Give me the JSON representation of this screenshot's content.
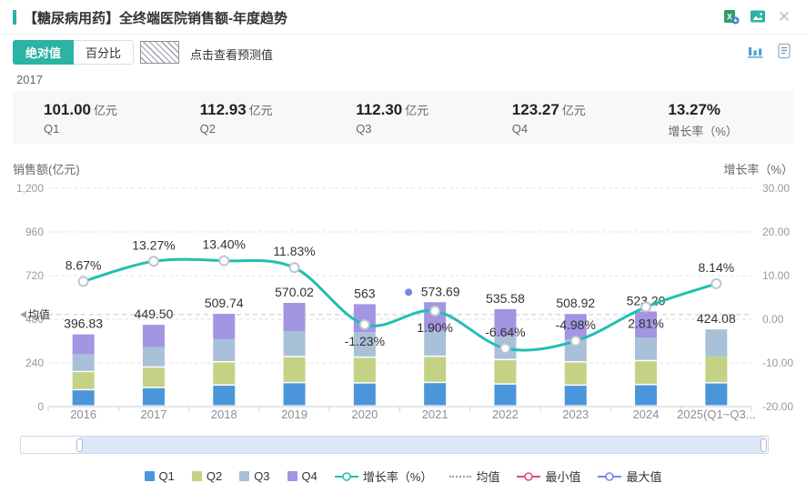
{
  "header": {
    "title": "【糖尿病用药】全终端医院销售额-年度趋势",
    "icons": [
      "excel-export-icon",
      "image-export-icon",
      "close-icon"
    ]
  },
  "toolbar": {
    "tabs": [
      {
        "label": "绝对值",
        "active": true
      },
      {
        "label": "百分比",
        "active": false
      }
    ],
    "forecast_label": "点击查看预测值",
    "view_icons": [
      "bar-chart-view-icon",
      "report-view-icon"
    ]
  },
  "period": {
    "year": "2017"
  },
  "stats": {
    "items": [
      {
        "value": "101.00",
        "unit": "亿元",
        "label": "Q1"
      },
      {
        "value": "112.93",
        "unit": "亿元",
        "label": "Q2"
      },
      {
        "value": "112.30",
        "unit": "亿元",
        "label": "Q3"
      },
      {
        "value": "123.27",
        "unit": "亿元",
        "label": "Q4"
      },
      {
        "value": "13.27%",
        "unit": "",
        "label": "增长率（%）"
      }
    ]
  },
  "chart_data": {
    "type": "stacked-bar+line",
    "title": "【糖尿病用药】全终端医院销售额-年度趋势",
    "categories": [
      "2016",
      "2017",
      "2018",
      "2019",
      "2020",
      "2021",
      "2022",
      "2023",
      "2024",
      "2025(Q1~Q3..."
    ],
    "bar_totals": [
      396.83,
      449.5,
      509.74,
      570.02,
      563,
      573.69,
      535.58,
      508.92,
      523.2,
      424.08
    ],
    "bar_total_labels": [
      "396.83",
      "449.50",
      "509.74",
      "570.02",
      "563",
      "573.69",
      "535.58",
      "508.92",
      "523.20",
      "424.08"
    ],
    "bar_stack_names": [
      "Q1",
      "Q2",
      "Q3",
      "Q4"
    ],
    "bar_stack_colors": [
      "#4b96db",
      "#c3d284",
      "#a9c0d9",
      "#a295e2"
    ],
    "last_category_quarter_count": 3,
    "line_series": {
      "name": "增长率（%）",
      "values": [
        8.67,
        13.27,
        13.4,
        11.83,
        -1.23,
        1.9,
        -6.64,
        -4.98,
        2.81,
        8.14
      ],
      "labels": [
        "8.67%",
        "13.27%",
        "13.40%",
        "11.83%",
        "-1.23%",
        "1.90%",
        "-6.64%",
        "-4.98%",
        "2.81%",
        "8.14%"
      ],
      "label_placement": [
        "above",
        "above",
        "above",
        "above",
        "below",
        "below",
        "above",
        "above",
        "below",
        "above"
      ],
      "color": "#20bfb2"
    },
    "left_axis": {
      "label": "销售额(亿元)",
      "min": 0,
      "max": 1200,
      "ticks": [
        "1,200",
        "960",
        "720",
        "480",
        "240",
        "0"
      ]
    },
    "right_axis": {
      "label": "增长率（%）",
      "min": -20,
      "max": 30,
      "ticks": [
        "30.00",
        "20.00",
        "10.00",
        "0.00",
        "-10.00",
        "-20.00"
      ]
    },
    "mean_line": {
      "label": "均值",
      "source": "average_of_bar_totals"
    },
    "max_point": {
      "category": "2021",
      "label": "573.69",
      "marker_color": "#7b83eb"
    },
    "grid": "horizontal-dashed",
    "legend_position": "bottom"
  },
  "legend": {
    "items": [
      {
        "key": "q1",
        "label": "Q1",
        "type": "square",
        "color": "#4b96db"
      },
      {
        "key": "q2",
        "label": "Q2",
        "type": "square",
        "color": "#c3d284"
      },
      {
        "key": "q3",
        "label": "Q3",
        "type": "square",
        "color": "#a9c0d9"
      },
      {
        "key": "q4",
        "label": "Q4",
        "type": "square",
        "color": "#a295e2"
      },
      {
        "key": "growth-rate",
        "label": "增长率（%）",
        "type": "line-circle",
        "color": "#20bfb2"
      },
      {
        "key": "mean",
        "label": "均值",
        "type": "dotted",
        "color": "#9a9a9a"
      },
      {
        "key": "min",
        "label": "最小值",
        "type": "line-circle",
        "color": "#e8488b"
      },
      {
        "key": "max",
        "label": "最大值",
        "type": "line-circle",
        "color": "#7b83eb"
      }
    ]
  },
  "colors": {
    "accent": "#2bb3a3",
    "line": "#20bfb2",
    "grid": "#dfe5ea",
    "axis": "#c9cdd3",
    "tick_text": "#999999"
  }
}
